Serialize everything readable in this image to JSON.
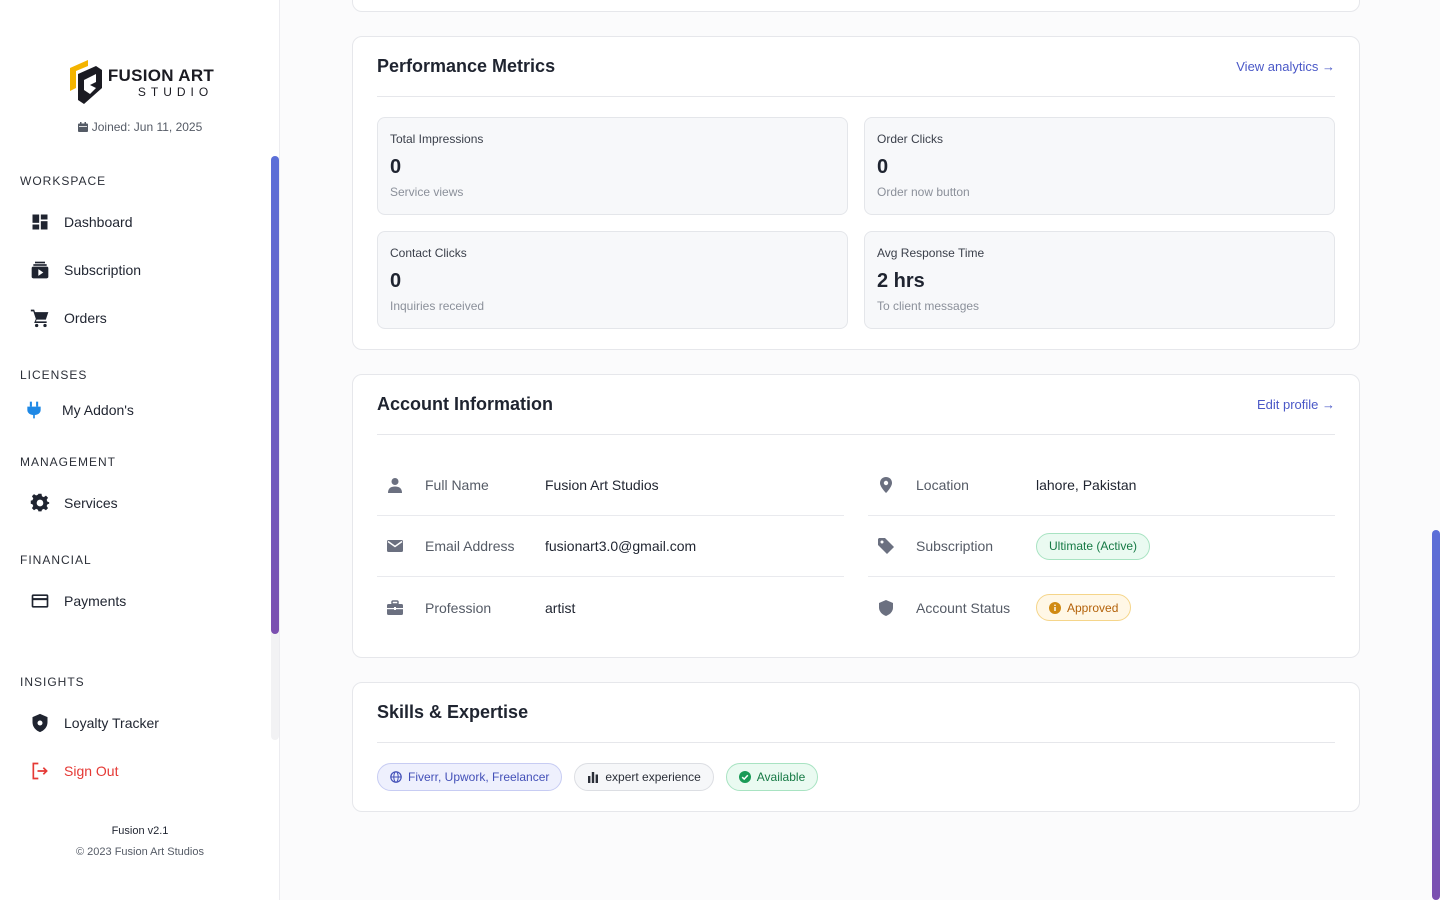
{
  "sidebar": {
    "brand": {
      "line1": "FUSION ART",
      "line2": "STUDIO"
    },
    "joined": "Joined: Jun 11, 2025",
    "sections": {
      "workspace": "WORKSPACE",
      "licenses": "LICENSES",
      "management": "MANAGEMENT",
      "financial": "FINANCIAL",
      "insights": "INSIGHTS"
    },
    "items": {
      "dashboard": "Dashboard",
      "subscription": "Subscription",
      "orders": "Orders",
      "addons": "My Addon's",
      "services": "Services",
      "payments": "Payments",
      "loyalty": "Loyalty Tracker",
      "signout": "Sign Out"
    },
    "footer": {
      "version": "Fusion v2.1",
      "copyright": "© 2023 Fusion Art Studios"
    }
  },
  "performance": {
    "title": "Performance Metrics",
    "link": "View analytics →",
    "metrics": [
      {
        "label": "Total Impressions",
        "value": "0",
        "sub": "Service views"
      },
      {
        "label": "Order Clicks",
        "value": "0",
        "sub": "Order now button"
      },
      {
        "label": "Contact Clicks",
        "value": "0",
        "sub": "Inquiries received"
      },
      {
        "label": "Avg Response Time",
        "value": "2 hrs",
        "sub": "To client messages"
      }
    ]
  },
  "account": {
    "title": "Account Information",
    "link": "Edit profile →",
    "rows": {
      "full_name": {
        "label": "Full Name",
        "value": "Fusion Art Studios"
      },
      "email": {
        "label": "Email Address",
        "value": "fusionart3.0@gmail.com"
      },
      "profession": {
        "label": "Profession",
        "value": "artist"
      },
      "location": {
        "label": "Location",
        "value": "lahore, Pakistan"
      },
      "subscription": {
        "label": "Subscription",
        "value": "Ultimate (Active)"
      },
      "status": {
        "label": "Account Status",
        "value": "Approved"
      }
    }
  },
  "skills": {
    "title": "Skills & Expertise",
    "chips": [
      "Fiverr, Upwork, Freelancer",
      "expert experience",
      "Available"
    ]
  },
  "colors": {
    "accent": "#4a58c7",
    "signout": "#e53935",
    "success": "#167a45",
    "warning": "#b4620a"
  }
}
